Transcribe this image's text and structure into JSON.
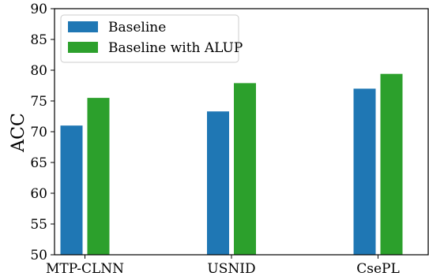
{
  "chart_data": {
    "type": "bar",
    "title": "",
    "xlabel": "",
    "ylabel": "ACC",
    "categories": [
      "MTP-CLNN",
      "USNID",
      "CsePL"
    ],
    "series": [
      {
        "name": "Baseline",
        "values": [
          71.0,
          73.3,
          77.0
        ],
        "color": "#1f77b4"
      },
      {
        "name": "Baseline with ALUP",
        "values": [
          75.5,
          77.9,
          79.4
        ],
        "color": "#2ca02c"
      }
    ],
    "ylim": [
      50,
      90
    ],
    "yticks": [
      50,
      55,
      60,
      65,
      70,
      75,
      80,
      85,
      90
    ],
    "grid": false,
    "legend_position": "top-left"
  }
}
